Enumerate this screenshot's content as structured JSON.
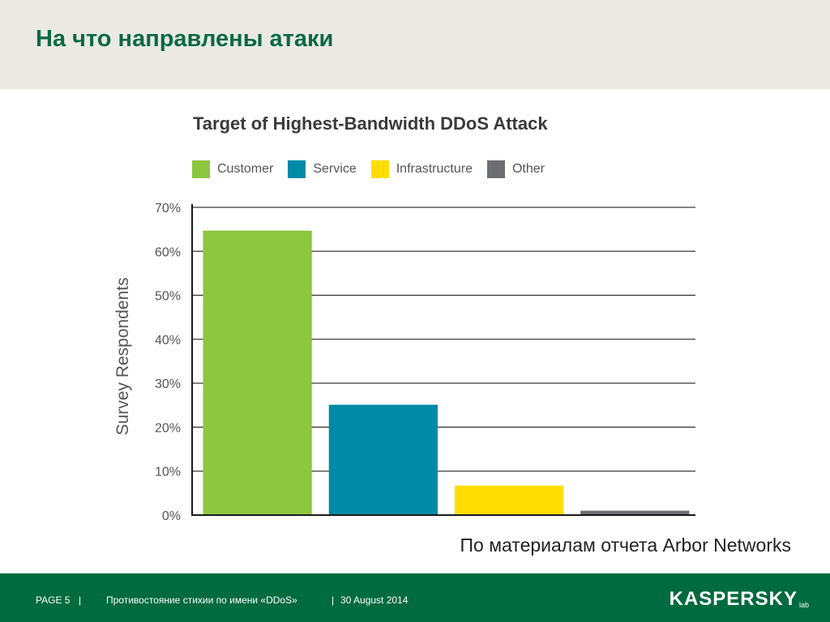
{
  "slide": {
    "title": "На что направлены атаки",
    "source": "По материалам отчета Arbor Networks"
  },
  "footer": {
    "page": "PAGE 5",
    "sep1": "|",
    "subject": "Противостояние стихии по имени «DDoS»",
    "sep2": "|",
    "date": "30 August 2014",
    "logo_text": "KASPERSKY",
    "logo_sub": "lab"
  },
  "chart_data": {
    "type": "bar",
    "title": "Target of Highest-Bandwidth DDoS Attack",
    "xlabel": "",
    "ylabel": "Survey Respondents",
    "ylim": [
      0,
      70
    ],
    "yticks": [
      0,
      10,
      20,
      30,
      40,
      50,
      60,
      70
    ],
    "ytick_labels": [
      "0%",
      "10%",
      "20%",
      "30%",
      "40%",
      "50%",
      "60%",
      "70%"
    ],
    "grid": true,
    "legend_position": "top-left",
    "categories": [
      "Customer",
      "Service",
      "Infrastructure",
      "Other"
    ],
    "values": [
      64.7,
      25.1,
      6.7,
      1.0
    ],
    "colors": [
      "#8dc63f",
      "#008aa6",
      "#ffdd00",
      "#6d6e71"
    ]
  }
}
